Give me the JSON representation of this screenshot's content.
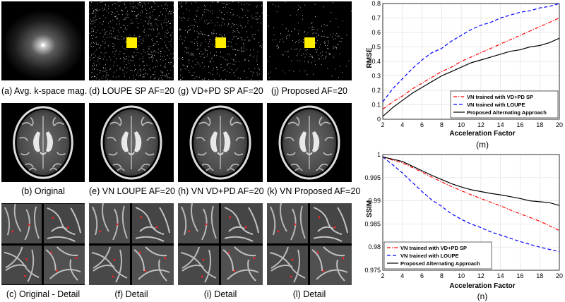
{
  "panels": {
    "row1": [
      "(a) Avg. k-space mag.",
      "(d) LOUPE SP AF=20",
      "(g) VD+PD SP AF=20",
      "(j) Proposed AF=20"
    ],
    "row2": [
      "(b) Original",
      "(e) VN LOUPE AF=20",
      "(h) VN VD+PD AF=20",
      "(k) VN Proposed AF=20"
    ],
    "row3": [
      "(c) Original - Detail",
      "(f) Detail",
      "(i) Detail",
      "(l) Detail"
    ]
  },
  "colors": {
    "mask_square": "#ffee00",
    "marker": "#ff2020",
    "vdpd": "#ff0000",
    "loupe": "#0000ff",
    "proposed": "#000000"
  },
  "chart_data": [
    {
      "type": "line",
      "caption": "(m)",
      "xlabel": "Acceleration Factor",
      "ylabel": "RMSE",
      "xlim": [
        2,
        20
      ],
      "ylim": [
        0,
        0.8
      ],
      "xticks": [
        "2",
        "4",
        "6",
        "8",
        "10",
        "12",
        "14",
        "16",
        "18",
        "20"
      ],
      "yticks": [
        "0",
        "0.1",
        "0.2",
        "0.3",
        "0.4",
        "0.5",
        "0.6",
        "0.7",
        "0.8"
      ],
      "grid": true,
      "legend_position": "bottom-right",
      "x": [
        2,
        3,
        4,
        5,
        6,
        7,
        8,
        9,
        10,
        11,
        12,
        13,
        14,
        15,
        16,
        17,
        18,
        19,
        20
      ],
      "series": [
        {
          "name": "VN trained with VD+PD SP",
          "style": "dashdot",
          "color": "#ff0000",
          "values": [
            0.07,
            0.12,
            0.16,
            0.21,
            0.25,
            0.29,
            0.33,
            0.36,
            0.4,
            0.43,
            0.46,
            0.49,
            0.52,
            0.55,
            0.58,
            0.61,
            0.64,
            0.67,
            0.7
          ]
        },
        {
          "name": "VN trained with LOUPE",
          "style": "dashed",
          "color": "#0000ff",
          "values": [
            0.12,
            0.21,
            0.28,
            0.35,
            0.41,
            0.46,
            0.49,
            0.54,
            0.58,
            0.62,
            0.65,
            0.67,
            0.7,
            0.72,
            0.74,
            0.75,
            0.77,
            0.78,
            0.8
          ]
        },
        {
          "name": "Proposed Alternating Approach",
          "style": "solid",
          "color": "#000000",
          "values": [
            0.02,
            0.08,
            0.13,
            0.18,
            0.22,
            0.26,
            0.3,
            0.33,
            0.36,
            0.39,
            0.41,
            0.43,
            0.45,
            0.47,
            0.48,
            0.5,
            0.51,
            0.53,
            0.56
          ]
        }
      ]
    },
    {
      "type": "line",
      "caption": "(n)",
      "xlabel": "Acceleration Factor",
      "ylabel": "SSIM",
      "xlim": [
        2,
        20
      ],
      "ylim": [
        0.975,
        1
      ],
      "xticks": [
        "2",
        "4",
        "6",
        "8",
        "10",
        "12",
        "14",
        "16",
        "18",
        "20"
      ],
      "yticks": [
        "0.975",
        "0.98",
        "0.985",
        "0.99",
        "0.995",
        "1"
      ],
      "grid": true,
      "legend_position": "bottom-left",
      "x": [
        2,
        3,
        4,
        5,
        6,
        7,
        8,
        9,
        10,
        11,
        12,
        13,
        14,
        15,
        16,
        17,
        18,
        19,
        20
      ],
      "series": [
        {
          "name": "VN trained with VD+PD SP",
          "style": "dashdot",
          "color": "#ff0000",
          "values": [
            0.9995,
            0.9988,
            0.9982,
            0.9972,
            0.9962,
            0.9951,
            0.9941,
            0.9931,
            0.9922,
            0.9913,
            0.9905,
            0.9897,
            0.9889,
            0.988,
            0.9872,
            0.9864,
            0.9856,
            0.9846,
            0.9836
          ]
        },
        {
          "name": "VN trained with LOUPE",
          "style": "dashed",
          "color": "#0000ff",
          "values": [
            0.9995,
            0.9978,
            0.996,
            0.994,
            0.992,
            0.9902,
            0.9888,
            0.9872,
            0.986,
            0.985,
            0.9842,
            0.9833,
            0.9826,
            0.9819,
            0.9812,
            0.9806,
            0.98,
            0.9795,
            0.979
          ]
        },
        {
          "name": "Proposed Alternating Approach",
          "style": "solid",
          "color": "#000000",
          "values": [
            0.9995,
            0.999,
            0.9985,
            0.9975,
            0.9965,
            0.9955,
            0.9946,
            0.9937,
            0.993,
            0.9924,
            0.992,
            0.9916,
            0.9913,
            0.9909,
            0.9905,
            0.99,
            0.9898,
            0.9896,
            0.989
          ]
        }
      ]
    }
  ]
}
